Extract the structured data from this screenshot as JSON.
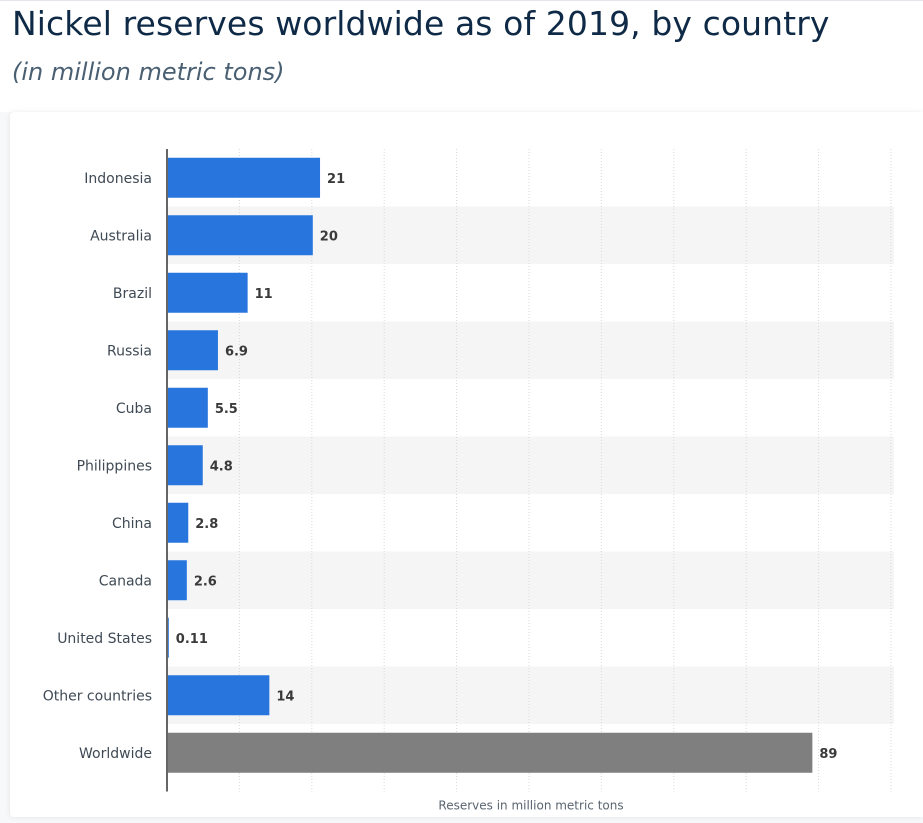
{
  "page": {
    "title": "Nickel reserves worldwide as of 2019, by country",
    "subtitle": "(in million metric tons)"
  },
  "chart_data": {
    "type": "bar",
    "orientation": "horizontal",
    "title": "Nickel reserves worldwide as of 2019, by country",
    "subtitle": "(in million metric tons)",
    "xlabel": "Reserves in million metric tons",
    "ylabel": "",
    "xlim": [
      0,
      100
    ],
    "grid": true,
    "legend": "none",
    "categories": [
      "Indonesia",
      "Australia",
      "Brazil",
      "Russia",
      "Cuba",
      "Philippines",
      "China",
      "Canada",
      "United States",
      "Other countries",
      "Worldwide"
    ],
    "values": [
      21,
      20,
      11,
      6.9,
      5.5,
      4.8,
      2.8,
      2.6,
      0.11,
      14,
      89
    ],
    "value_labels": [
      "21",
      "20",
      "11",
      "6.9",
      "5.5",
      "4.8",
      "2.8",
      "2.6",
      "0.11",
      "14",
      "89"
    ],
    "colors": {
      "bar": "#2876dd",
      "highlight": "#7f7f7f",
      "band": "#f5f5f5",
      "grid": "#d5d9dd",
      "axis": "#333333"
    },
    "highlight_category": "Worldwide"
  }
}
